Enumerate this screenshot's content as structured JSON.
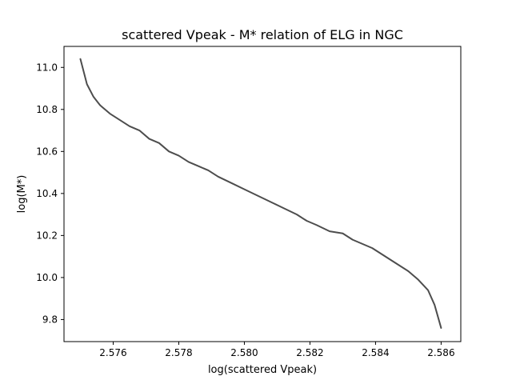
{
  "chart_data": {
    "type": "line",
    "title": "scattered Vpeak - M* relation of ELG in NGC",
    "xlabel": "log(scattered Vpeak)",
    "ylabel": "log(M*)",
    "xlim": [
      2.5745,
      2.5866
    ],
    "ylim": [
      9.695,
      11.1
    ],
    "xticks": [
      "2.576",
      "2.578",
      "2.580",
      "2.582",
      "2.584",
      "2.586"
    ],
    "yticks": [
      "9.8",
      "10.0",
      "10.2",
      "10.4",
      "10.6",
      "10.8",
      "11.0"
    ],
    "grid": false,
    "line_color": "#4d4d4d",
    "series": [
      {
        "x": [
          2.575,
          2.5752,
          2.5754,
          2.5756,
          2.5759,
          2.5762,
          2.5765,
          2.5768,
          2.5771,
          2.5774,
          2.5777,
          2.578,
          2.5783,
          2.5786,
          2.5789,
          2.5792,
          2.5796,
          2.58,
          2.5804,
          2.5808,
          2.5812,
          2.5816,
          2.5819,
          2.5822,
          2.5826,
          2.583,
          2.5833,
          2.5836,
          2.5839,
          2.5842,
          2.5846,
          2.585,
          2.5853,
          2.5856,
          2.5858,
          2.586
        ],
        "y": [
          11.04,
          10.92,
          10.86,
          10.82,
          10.78,
          10.75,
          10.72,
          10.7,
          10.66,
          10.64,
          10.6,
          10.58,
          10.55,
          10.53,
          10.51,
          10.48,
          10.45,
          10.42,
          10.39,
          10.36,
          10.33,
          10.3,
          10.27,
          10.25,
          10.22,
          10.21,
          10.18,
          10.16,
          10.14,
          10.11,
          10.07,
          10.03,
          9.99,
          9.94,
          9.87,
          9.76
        ]
      }
    ]
  }
}
